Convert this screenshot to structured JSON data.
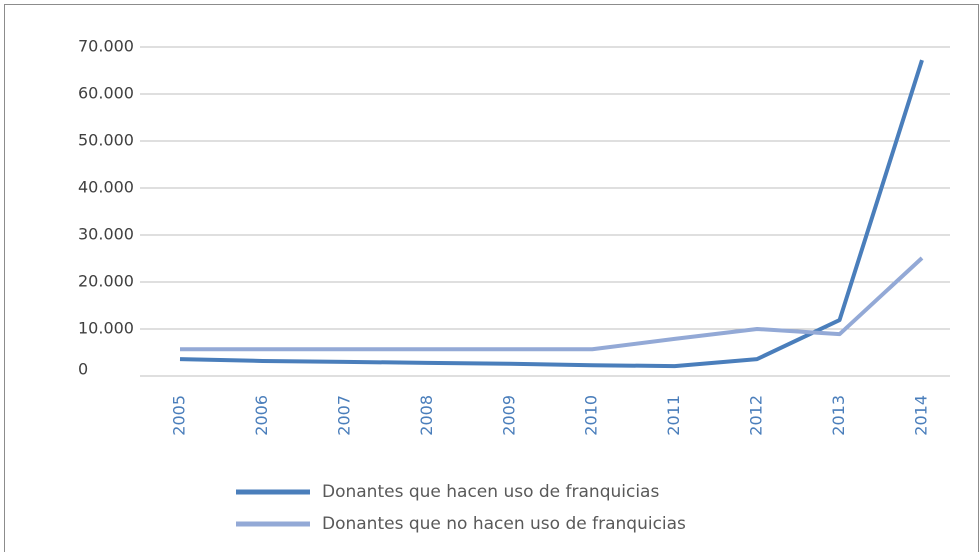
{
  "chart_data": {
    "type": "line",
    "categories": [
      "2005",
      "2006",
      "2007",
      "2008",
      "2009",
      "2010",
      "2011",
      "2012",
      "2013",
      "2014"
    ],
    "series": [
      {
        "name": "Donantes que hacen uso de franquicias",
        "color": "#4a7ebb",
        "values": [
          3600,
          3200,
          3000,
          2800,
          2600,
          2300,
          2100,
          3600,
          11900,
          67200
        ]
      },
      {
        "name": "Donantes que no hacen uso de franquicias",
        "color": "#93a9d6",
        "values": [
          5700,
          5700,
          5700,
          5700,
          5700,
          5700,
          7900,
          10000,
          8900,
          25100
        ]
      }
    ],
    "ylim": [
      0,
      70000
    ],
    "yticks": [
      0,
      {
        "value": 10000,
        "label": "10.000"
      },
      {
        "value": 20000,
        "label": "20.000"
      },
      {
        "value": 30000,
        "label": "30.000"
      },
      {
        "value": 40000,
        "label": "40.000"
      },
      {
        "value": 50000,
        "label": "50.000"
      },
      {
        "value": 60000,
        "label": "60.000"
      },
      {
        "value": 70000,
        "label": "70.000"
      }
    ],
    "grid": true,
    "legend": "bottom"
  }
}
